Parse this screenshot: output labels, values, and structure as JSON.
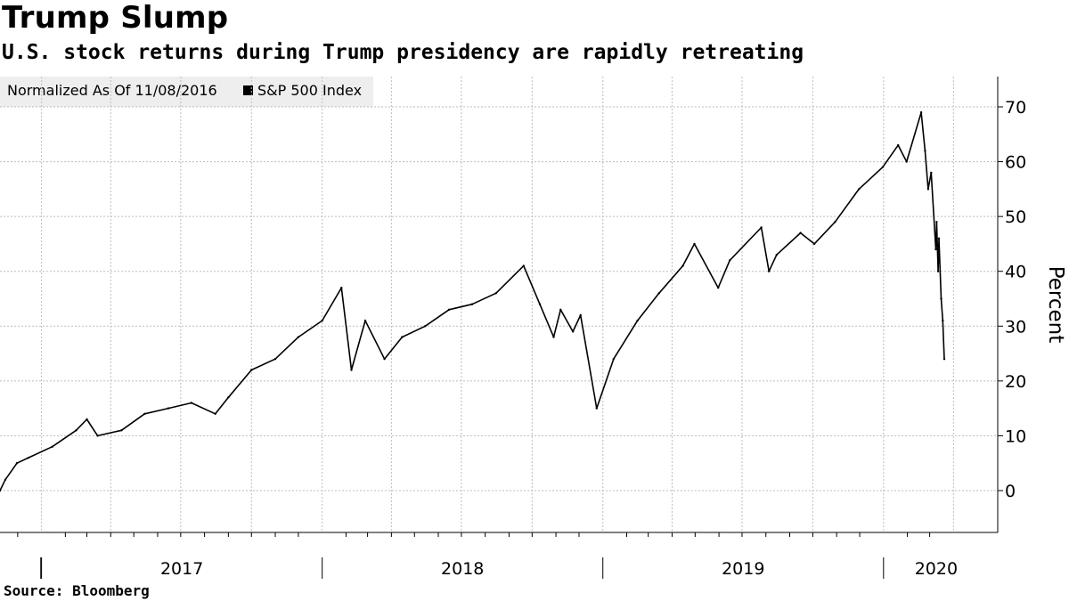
{
  "header": {
    "title": "Trump Slump",
    "subtitle": "U.S. stock returns during Trump presidency are rapidly retreating"
  },
  "legend": {
    "normalized_label": "Normalized As Of 11/08/2016",
    "series_label": "S&P 500 Index",
    "swatch_color": "#000000"
  },
  "footer": {
    "source": "Source: Bloomberg"
  },
  "chart_data": {
    "type": "line",
    "title": "Trump Slump",
    "subtitle": "U.S. stock returns during Trump presidency are rapidly retreating",
    "ylabel": "Percent",
    "xlabel": "",
    "ylim": [
      -8,
      76
    ],
    "xlim": [
      "2016-11-08",
      "2020-03-20"
    ],
    "y_ticks": [
      0,
      10,
      20,
      30,
      40,
      50,
      60,
      70
    ],
    "x_tick_labels": [
      "2017",
      "2018",
      "2019",
      "2020"
    ],
    "grid": true,
    "legend_position": "top-left",
    "series": [
      {
        "name": "S&P 500 Index",
        "color": "#000000",
        "x": [
          "2016-11-08",
          "2016-11-15",
          "2016-11-30",
          "2016-12-15",
          "2017-01-15",
          "2017-02-15",
          "2017-03-01",
          "2017-03-15",
          "2017-04-15",
          "2017-05-15",
          "2017-06-15",
          "2017-07-15",
          "2017-08-15",
          "2017-09-01",
          "2017-10-01",
          "2017-11-01",
          "2017-12-01",
          "2018-01-01",
          "2018-01-26",
          "2018-02-08",
          "2018-02-26",
          "2018-03-23",
          "2018-04-15",
          "2018-05-15",
          "2018-06-15",
          "2018-07-15",
          "2018-08-15",
          "2018-09-20",
          "2018-10-11",
          "2018-10-29",
          "2018-11-07",
          "2018-11-23",
          "2018-12-03",
          "2018-12-24",
          "2019-01-15",
          "2019-02-15",
          "2019-03-15",
          "2019-04-15",
          "2019-04-30",
          "2019-05-31",
          "2019-06-15",
          "2019-07-26",
          "2019-08-05",
          "2019-08-15",
          "2019-09-15",
          "2019-10-03",
          "2019-10-30",
          "2019-11-30",
          "2019-12-31",
          "2020-01-20",
          "2020-01-31",
          "2020-02-19",
          "2020-02-24",
          "2020-02-28",
          "2020-03-03",
          "2020-03-09",
          "2020-03-10",
          "2020-03-12",
          "2020-03-13",
          "2020-03-16",
          "2020-03-18",
          "2020-03-20"
        ],
        "values": [
          0,
          2,
          5,
          6,
          8,
          11,
          13,
          10,
          11,
          14,
          15,
          16,
          14,
          17,
          22,
          24,
          28,
          31,
          37,
          22,
          31,
          24,
          28,
          30,
          33,
          34,
          36,
          41,
          34,
          28,
          33,
          29,
          32,
          15,
          24,
          31,
          36,
          41,
          45,
          37,
          42,
          48,
          40,
          43,
          47,
          45,
          49,
          55,
          59,
          63,
          60,
          69,
          62,
          55,
          58,
          44,
          49,
          40,
          46,
          35,
          31,
          24
        ]
      }
    ]
  }
}
